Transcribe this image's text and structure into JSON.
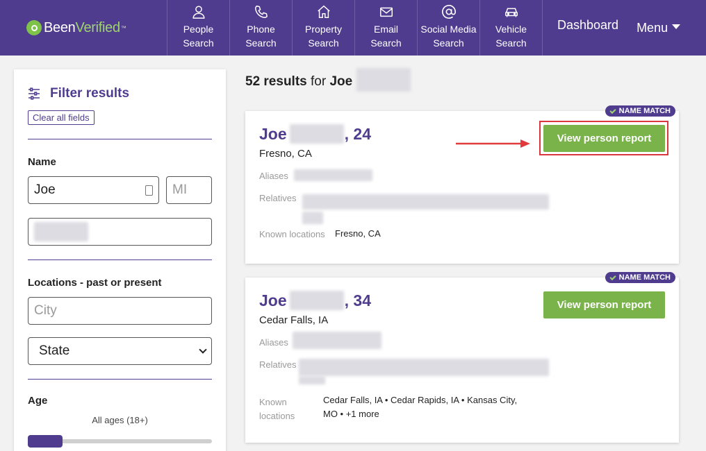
{
  "header": {
    "logo_text_1": "Been",
    "logo_text_2": "Verified",
    "logo_tm": "™",
    "nav": [
      {
        "icon": "person-icon",
        "label_line1": "People",
        "label_line2": "Search"
      },
      {
        "icon": "phone-icon",
        "label_line1": "Phone",
        "label_line2": "Search"
      },
      {
        "icon": "house-icon",
        "label_line1": "Property",
        "label_line2": "Search"
      },
      {
        "icon": "envelope-icon",
        "label_line1": "Email",
        "label_line2": "Search"
      },
      {
        "icon": "at-sign-icon",
        "label_line1": "Social Media",
        "label_line2": "Search"
      },
      {
        "icon": "car-icon",
        "label_line1": "Vehicle",
        "label_line2": "Search"
      }
    ],
    "dashboard": "Dashboard",
    "menu": "Menu"
  },
  "sidebar": {
    "title": "Filter results",
    "clear_label": "Clear all fields",
    "name_label": "Name",
    "first_name_value": "Joe",
    "mi_placeholder": "MI",
    "locations_label": "Locations - past or present",
    "city_placeholder": "City",
    "state_value": "State",
    "age_label": "Age",
    "age_range": "All ages (18+)"
  },
  "results": {
    "count_text": "52 results",
    "for_text": "for",
    "query_first": "Joe",
    "cards": [
      {
        "badge": "NAME MATCH",
        "first_name": "Joe",
        "age_suffix": ", 24",
        "location": "Fresno, CA",
        "aliases_label": "Aliases",
        "relatives_label": "Relatives",
        "known_locations_label": "Known locations",
        "known_locations_value": "Fresno, CA",
        "button": "View person report"
      },
      {
        "badge": "NAME MATCH",
        "first_name": "Joe",
        "age_suffix": ", 34",
        "location": "Cedar Falls, IA",
        "aliases_label": "Aliases",
        "relatives_label": "Relatives",
        "known_locations_label_1": "Known",
        "known_locations_label_2": "locations",
        "known_locations_value_1": "Cedar Falls, IA • Cedar Rapids, IA • Kansas City,",
        "known_locations_value_2": "MO • +1 more",
        "button": "View person report"
      }
    ]
  },
  "colors": {
    "brand_purple": "#4f3c8f",
    "button_green": "#7ab34a",
    "highlight_red": "#d9363e"
  }
}
